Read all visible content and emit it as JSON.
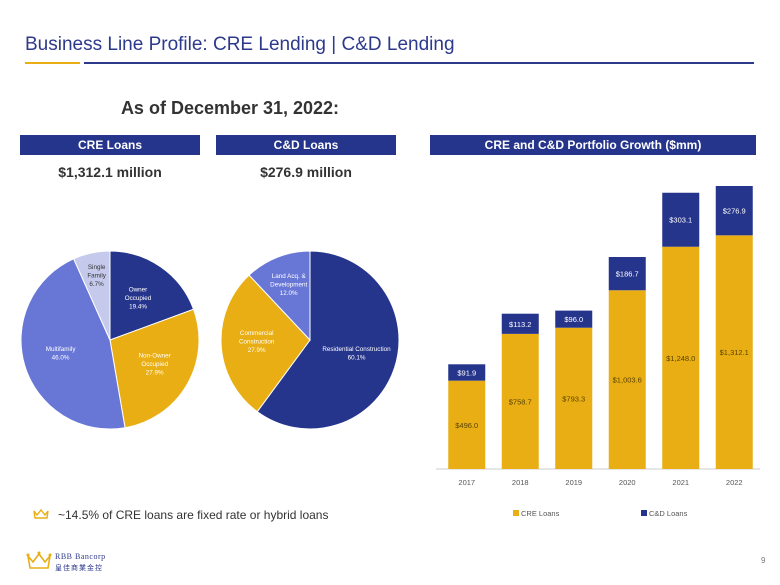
{
  "header": {
    "title": "Business Line Profile:  CRE Lending | C&D Lending",
    "as_of": "As of December 31, 2022:"
  },
  "panels": {
    "cre": {
      "header": "CRE Loans",
      "amount": "$1,312.1 million"
    },
    "cd": {
      "header": "C&D Loans",
      "amount": "$276.9 million"
    },
    "growth": {
      "header": "CRE and C&D Portfolio Growth ($mm)"
    }
  },
  "note": "~14.5% of CRE loans are fixed rate or hybrid loans",
  "footer": {
    "logo_line1": "RBB Bancorp",
    "logo_line2": "皇佳商業金控",
    "page_number": "9"
  },
  "colors": {
    "navy": "#26358c",
    "gold": "#e8ae13",
    "periwinkle": "#6877d6",
    "lavender": "#c5caec"
  },
  "chart_data": [
    {
      "type": "pie",
      "title": "CRE Loans",
      "slices": [
        {
          "label": "Owner\nOccupied",
          "pct": "19.4%",
          "value": 19.4,
          "color": "#26358c",
          "label_color": "#ffffff"
        },
        {
          "label": "Non-Owner\nOccupied",
          "pct": "27.9%",
          "value": 27.9,
          "color": "#e8ae13",
          "label_color": "#ffffff"
        },
        {
          "label": "Multifamily",
          "pct": "46.0%",
          "value": 46.0,
          "color": "#6877d6",
          "label_color": "#ffffff"
        },
        {
          "label": "Single\nFamily",
          "pct": "6.7%",
          "value": 6.7,
          "color": "#c5caec",
          "label_color": "#333333"
        }
      ]
    },
    {
      "type": "pie",
      "title": "C&D Loans",
      "slices": [
        {
          "label": "Residential Construction",
          "pct": "60.1%",
          "value": 60.1,
          "color": "#26358c",
          "label_color": "#ffffff"
        },
        {
          "label": "Commercial\nConstruction",
          "pct": "27.9%",
          "value": 27.9,
          "color": "#e8ae13",
          "label_color": "#ffffff"
        },
        {
          "label": "Land Acq. &\nDevelopment",
          "pct": "12.0%",
          "value": 12.0,
          "color": "#6877d6",
          "label_color": "#ffffff"
        }
      ]
    },
    {
      "type": "bar",
      "stacked": true,
      "title": "CRE and C&D Portfolio Growth ($mm)",
      "categories": [
        "2017",
        "2018",
        "2019",
        "2020",
        "2021",
        "2022"
      ],
      "series": [
        {
          "name": "CRE Loans",
          "color": "#e8ae13",
          "values": [
            496.0,
            758.7,
            793.3,
            1003.6,
            1248.0,
            1312.1
          ],
          "labels": [
            "$496.0",
            "$758.7",
            "$793.3",
            "$1,003.6",
            "$1,248.0",
            "$1,312.1"
          ]
        },
        {
          "name": "C&D Loans",
          "color": "#26358c",
          "values": [
            91.9,
            113.2,
            96.0,
            186.7,
            303.1,
            276.9
          ],
          "labels": [
            "$91.9",
            "$113.2",
            "$96.0",
            "$186.7",
            "$303.1",
            "$276.9"
          ]
        }
      ],
      "legend": "bottom"
    }
  ]
}
